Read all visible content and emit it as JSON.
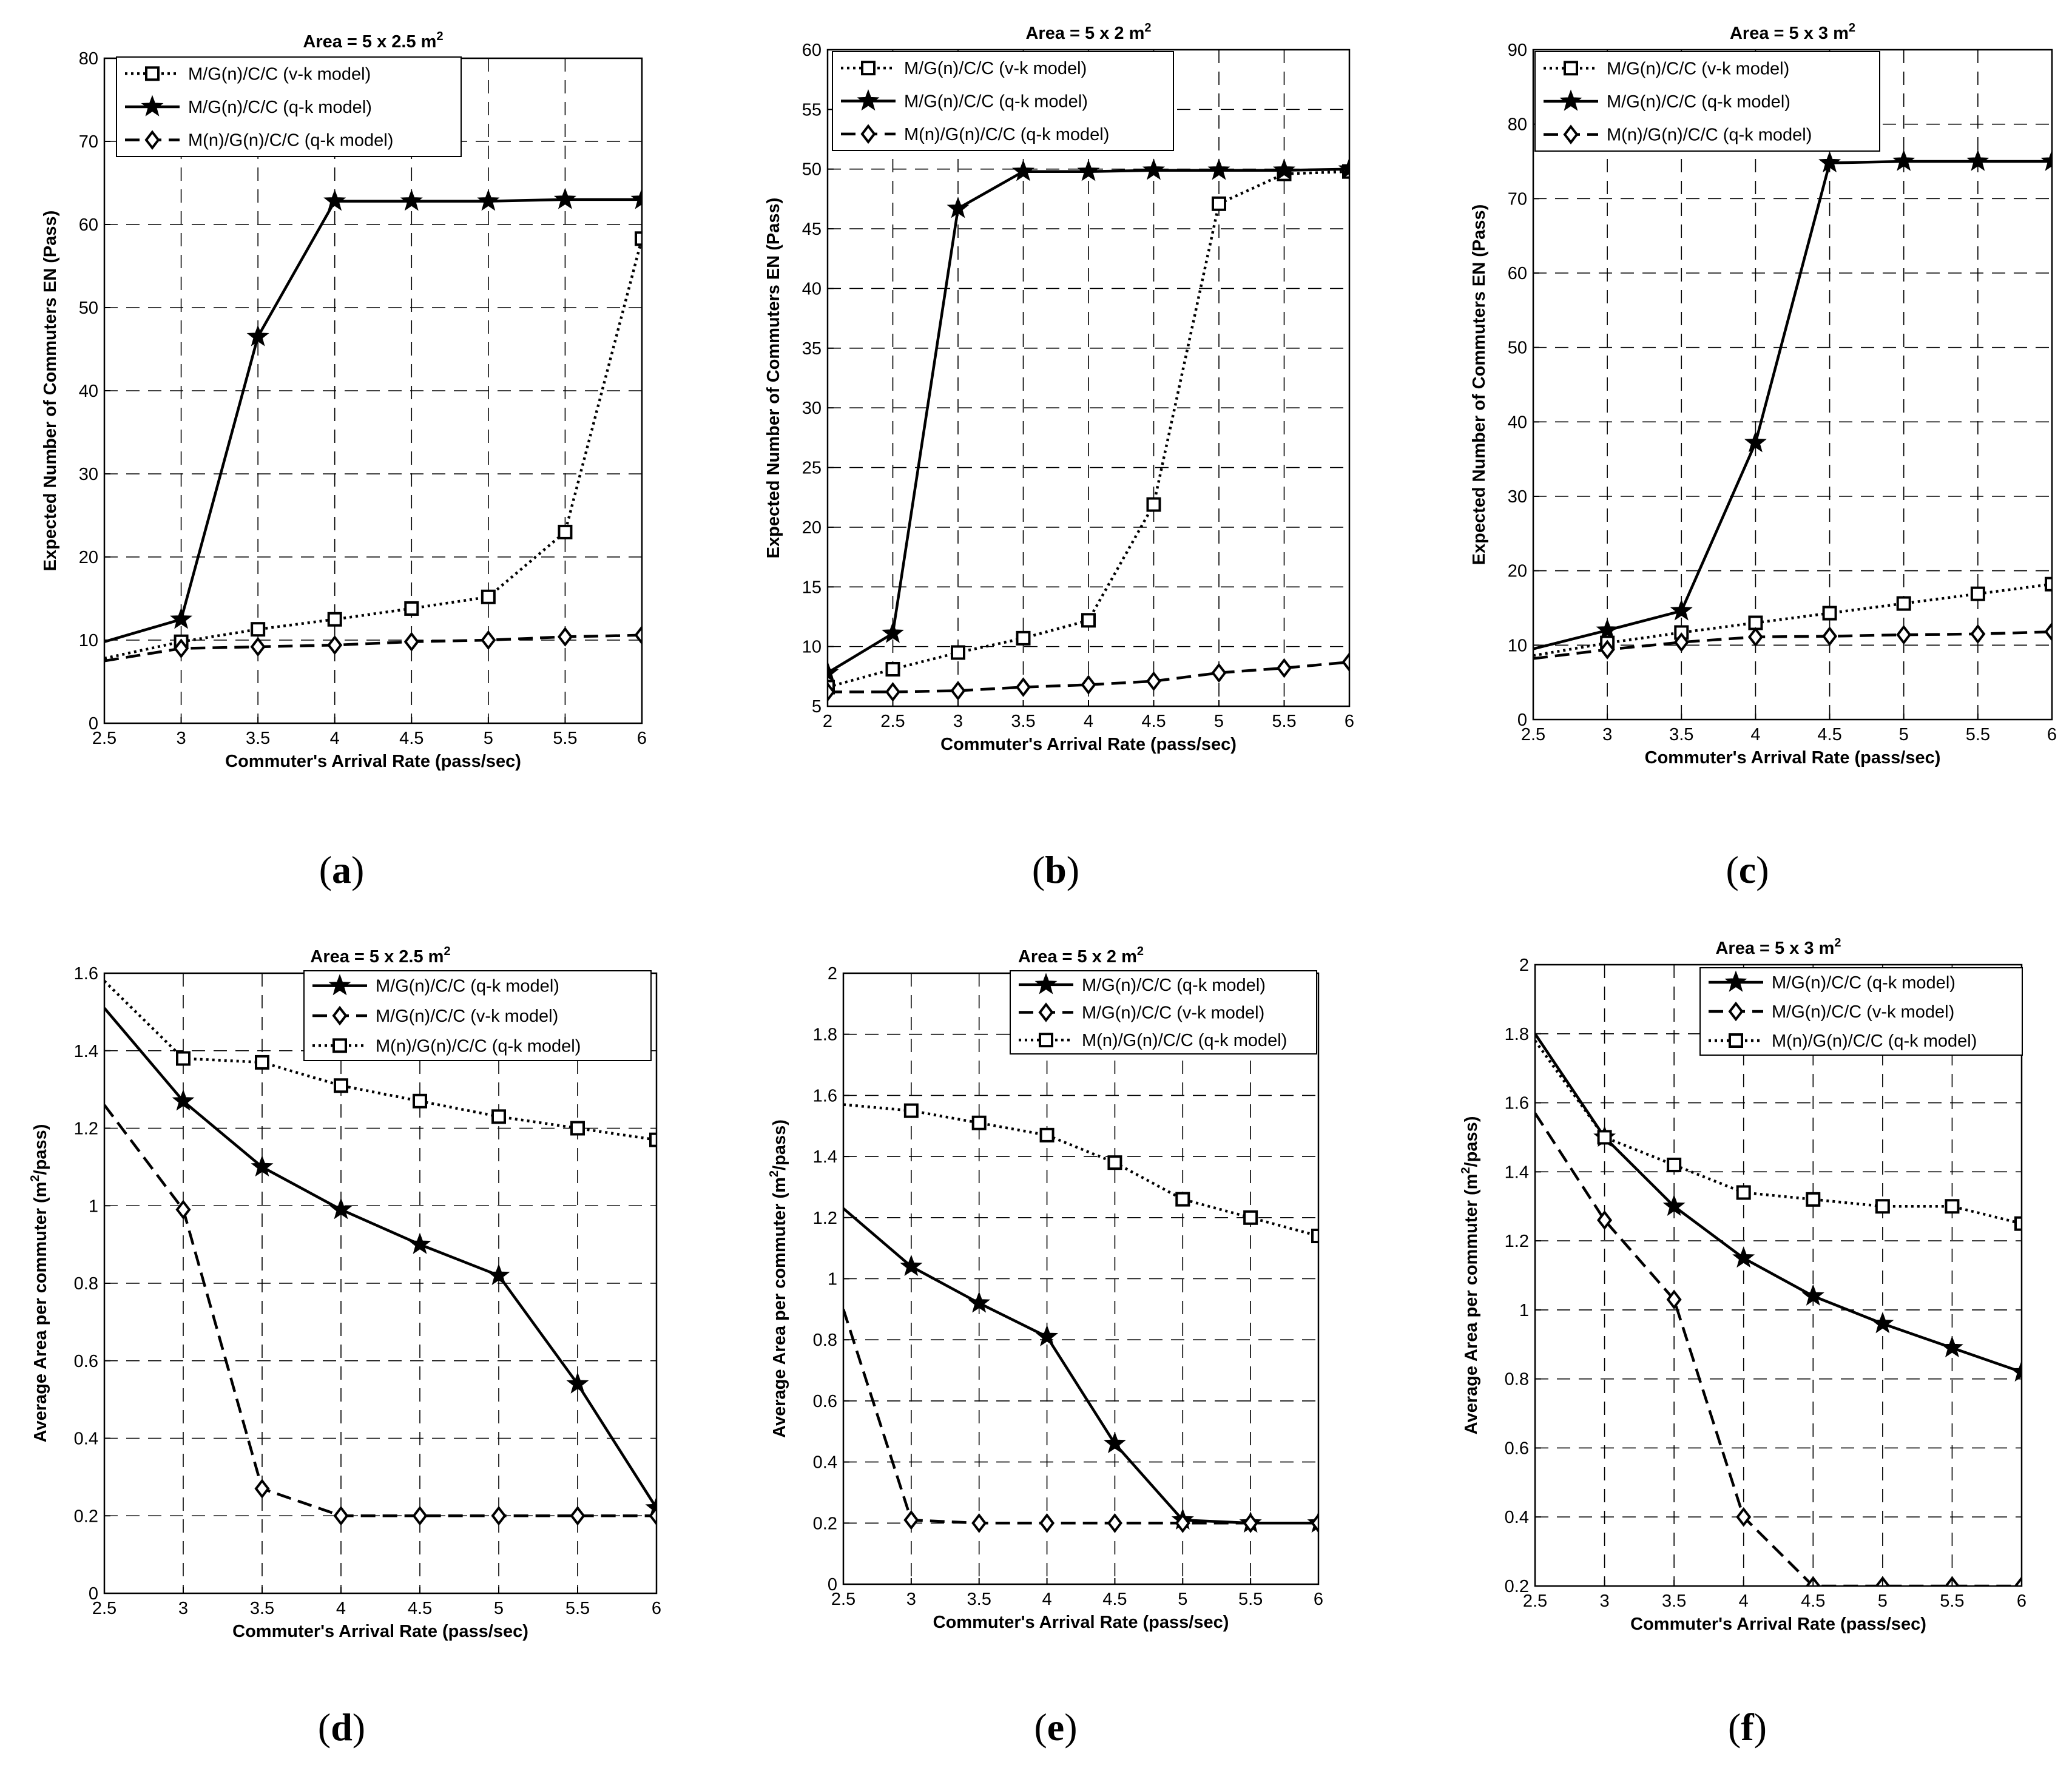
{
  "colors": {
    "background": "#ffffff",
    "ink": "#000000"
  },
  "chart_data": [
    {
      "id": "a",
      "type": "line",
      "sublabel": "(a)",
      "title": "Area = 5 x 2.5 m",
      "title_sup": "2",
      "xlabel": "Commuter's Arrival Rate (pass/sec)",
      "ylabel": "Expected Number of Commuters EN (Pass)",
      "xlim": [
        2.5,
        6
      ],
      "ylim": [
        0,
        80
      ],
      "xticks": [
        2.5,
        3,
        3.5,
        4,
        4.5,
        5,
        5.5,
        6
      ],
      "xtick_labels": [
        "2.5",
        "3",
        "3.5",
        "4",
        "4.5",
        "5",
        "5.5",
        "6"
      ],
      "yticks": [
        0,
        10,
        20,
        30,
        40,
        50,
        60,
        70,
        80
      ],
      "ytick_labels": [
        "0",
        "10",
        "20",
        "30",
        "40",
        "50",
        "60",
        "70",
        "80"
      ],
      "grid": true,
      "legend_position": "top-left",
      "series": [
        {
          "name": "M/G(n)/C/C (v-k model)",
          "line": "dotted",
          "marker": "square",
          "x": [
            2.5,
            3,
            3.5,
            4,
            4.5,
            5,
            5.5,
            6
          ],
          "y": [
            7.8,
            9.8,
            11.3,
            12.5,
            13.8,
            15.2,
            23,
            58.3
          ],
          "marked": [
            false,
            true,
            true,
            true,
            true,
            true,
            true,
            true
          ]
        },
        {
          "name": "M/G(n)/C/C (q-k model)",
          "line": "solid",
          "marker": "star",
          "x": [
            2.5,
            3,
            3.5,
            4,
            4.5,
            5,
            5.5,
            6
          ],
          "y": [
            9.8,
            12.5,
            46.5,
            62.8,
            62.8,
            62.8,
            63,
            63
          ],
          "marked": [
            false,
            true,
            true,
            true,
            true,
            true,
            true,
            true
          ]
        },
        {
          "name": "M(n)/G(n)/C/C (q-k model)",
          "line": "dashed",
          "marker": "diamond",
          "x": [
            2.5,
            3,
            3.5,
            4,
            4.5,
            5,
            5.5,
            6
          ],
          "y": [
            7.5,
            9,
            9.2,
            9.4,
            9.8,
            10,
            10.4,
            10.6
          ],
          "marked": [
            false,
            true,
            true,
            true,
            true,
            true,
            true,
            true
          ]
        }
      ]
    },
    {
      "id": "b",
      "type": "line",
      "sublabel": "(b)",
      "title": "Area = 5 x 2 m",
      "title_sup": "2",
      "xlabel": "Commuter's Arrival Rate (pass/sec)",
      "ylabel": "Expected Number of Commuters EN (Pass)",
      "xlim": [
        2,
        6
      ],
      "ylim": [
        5,
        60
      ],
      "xticks": [
        2,
        2.5,
        3,
        3.5,
        4,
        4.5,
        5,
        5.5,
        6
      ],
      "xtick_labels": [
        "2",
        "2.5",
        "3",
        "3.5",
        "4",
        "4.5",
        "5",
        "5.5",
        "6"
      ],
      "yticks": [
        5,
        10,
        15,
        20,
        25,
        30,
        35,
        40,
        45,
        50,
        55,
        60
      ],
      "ytick_labels": [
        "5",
        "10",
        "15",
        "20",
        "25",
        "30",
        "35",
        "40",
        "45",
        "50",
        "55",
        "60"
      ],
      "grid": true,
      "legend_position": "top-right",
      "series": [
        {
          "name": "M/G(n)/C/C (v-k model)",
          "line": "dotted",
          "marker": "square",
          "x": [
            2,
            2.5,
            3,
            3.5,
            4,
            4.5,
            5,
            5.5,
            6
          ],
          "y": [
            6.6,
            8.1,
            9.5,
            10.7,
            12.2,
            21.9,
            47.1,
            49.6,
            49.8
          ],
          "marked": [
            true,
            true,
            true,
            true,
            true,
            true,
            true,
            true,
            true
          ]
        },
        {
          "name": "M/G(n)/C/C (q-k model)",
          "line": "solid",
          "marker": "star",
          "x": [
            2,
            2.5,
            3,
            3.5,
            4,
            4.5,
            5,
            5.5,
            6
          ],
          "y": [
            7.8,
            11.1,
            46.7,
            49.8,
            49.8,
            49.9,
            49.9,
            49.9,
            50
          ],
          "marked": [
            true,
            true,
            true,
            true,
            true,
            true,
            true,
            true,
            true
          ]
        },
        {
          "name": "M(n)/G(n)/C/C (q-k model)",
          "line": "dashed",
          "marker": "diamond",
          "x": [
            2,
            2.5,
            3,
            3.5,
            4,
            4.5,
            5,
            5.5,
            6
          ],
          "y": [
            6.2,
            6.2,
            6.3,
            6.6,
            6.8,
            7.1,
            7.8,
            8.2,
            8.7
          ],
          "marked": [
            true,
            true,
            true,
            true,
            true,
            true,
            true,
            true,
            true
          ]
        }
      ]
    },
    {
      "id": "c",
      "type": "line",
      "sublabel": "(c)",
      "title": "Area = 5 x 3 m",
      "title_sup": "2",
      "xlabel": "Commuter's Arrival Rate (pass/sec)",
      "ylabel": "Expected Number of Commuters EN (Pass)",
      "xlim": [
        2.5,
        6
      ],
      "ylim": [
        0,
        90
      ],
      "xticks": [
        2.5,
        3,
        3.5,
        4,
        4.5,
        5,
        5.5,
        6
      ],
      "xtick_labels": [
        "2.5",
        "3",
        "3.5",
        "4",
        "4.5",
        "5",
        "5.5",
        "6"
      ],
      "yticks": [
        0,
        10,
        20,
        30,
        40,
        50,
        60,
        70,
        80,
        90
      ],
      "ytick_labels": [
        "0",
        "10",
        "20",
        "30",
        "40",
        "50",
        "60",
        "70",
        "80",
        "90"
      ],
      "grid": true,
      "legend_position": "top-right",
      "series": [
        {
          "name": "M/G(n)/C/C (v-k model)",
          "line": "dotted",
          "marker": "square",
          "x": [
            2.5,
            3,
            3.5,
            4,
            4.5,
            5,
            5.5,
            6
          ],
          "y": [
            8.6,
            10.3,
            11.7,
            13,
            14.3,
            15.6,
            16.9,
            18.2
          ],
          "marked": [
            false,
            true,
            true,
            true,
            true,
            true,
            true,
            true
          ]
        },
        {
          "name": "M/G(n)/C/C (q-k model)",
          "line": "solid",
          "marker": "star",
          "x": [
            2.5,
            3,
            3.5,
            4,
            4.5,
            5,
            5.5,
            6
          ],
          "y": [
            9.5,
            12,
            14.6,
            37.2,
            74.8,
            75,
            75,
            75
          ],
          "marked": [
            false,
            true,
            true,
            true,
            true,
            true,
            true,
            true
          ]
        },
        {
          "name": "M(n)/G(n)/C/C (q-k model)",
          "line": "dashed",
          "marker": "diamond",
          "x": [
            2.5,
            3,
            3.5,
            4,
            4.5,
            5,
            5.5,
            6
          ],
          "y": [
            8.2,
            9.4,
            10.4,
            11.1,
            11.2,
            11.4,
            11.5,
            11.8
          ],
          "marked": [
            false,
            true,
            true,
            true,
            true,
            true,
            true,
            true
          ]
        }
      ]
    },
    {
      "id": "d",
      "type": "line",
      "sublabel": "(d)",
      "title": "Area = 5 x 2.5 m",
      "title_sup": "2",
      "xlabel": "Commuter's Arrival Rate (pass/sec)",
      "ylabel": "Average Area per commuter (m",
      "ylabel_sup": "2",
      "ylabel_tail": "/pass)",
      "xlim": [
        2.5,
        6
      ],
      "ylim": [
        0,
        1.6
      ],
      "xticks": [
        2.5,
        3,
        3.5,
        4,
        4.5,
        5,
        5.5,
        6
      ],
      "xtick_labels": [
        "2.5",
        "3",
        "3.5",
        "4",
        "4.5",
        "5",
        "5.5",
        "6"
      ],
      "yticks": [
        0,
        0.2,
        0.4,
        0.6,
        0.8,
        1,
        1.2,
        1.4,
        1.6
      ],
      "ytick_labels": [
        "0",
        "0.2",
        "0.4",
        "0.6",
        "0.8",
        "1",
        "1.2",
        "1.4",
        "1.6"
      ],
      "grid": true,
      "legend_position": "top-right",
      "series": [
        {
          "name": "M/G(n)/C/C (q-k model)",
          "line": "solid",
          "marker": "star",
          "x": [
            2.5,
            3,
            3.5,
            4,
            4.5,
            5,
            5.5,
            6
          ],
          "y": [
            1.51,
            1.27,
            1.1,
            0.99,
            0.9,
            0.82,
            0.54,
            0.22
          ],
          "marked": [
            false,
            true,
            true,
            true,
            true,
            true,
            true,
            true
          ]
        },
        {
          "name": "M/G(n)/C/C (v-k model)",
          "line": "dashed",
          "marker": "diamond",
          "x": [
            2.5,
            3,
            3.5,
            4,
            4.5,
            5,
            5.5,
            6
          ],
          "y": [
            1.26,
            0.99,
            0.27,
            0.2,
            0.2,
            0.2,
            0.2,
            0.2
          ],
          "marked": [
            false,
            true,
            true,
            true,
            true,
            true,
            true,
            true
          ]
        },
        {
          "name": "M(n)/G(n)/C/C (q-k model)",
          "line": "dotted",
          "marker": "square",
          "x": [
            2.5,
            3,
            3.5,
            4,
            4.5,
            5,
            5.5,
            6
          ],
          "y": [
            1.58,
            1.38,
            1.37,
            1.31,
            1.27,
            1.23,
            1.2,
            1.17
          ],
          "marked": [
            false,
            true,
            true,
            true,
            true,
            true,
            true,
            true
          ]
        }
      ]
    },
    {
      "id": "e",
      "type": "line",
      "sublabel": "(e)",
      "title": "Area = 5 x 2 m",
      "title_sup": "2",
      "xlabel": "Commuter's Arrival Rate (pass/sec)",
      "ylabel": "Average Area per commuter (m",
      "ylabel_sup": "2",
      "ylabel_tail": "/pass)",
      "xlim": [
        2.5,
        6
      ],
      "ylim": [
        0,
        2
      ],
      "xticks": [
        2.5,
        3,
        3.5,
        4,
        4.5,
        5,
        5.5,
        6
      ],
      "xtick_labels": [
        "2.5",
        "3",
        "3.5",
        "4",
        "4.5",
        "5",
        "5.5",
        "6"
      ],
      "yticks": [
        0,
        0.2,
        0.4,
        0.6,
        0.8,
        1,
        1.2,
        1.4,
        1.6,
        1.8,
        2
      ],
      "ytick_labels": [
        "0",
        "0.2",
        "0.4",
        "0.6",
        "0.8",
        "1",
        "1.2",
        "1.4",
        "1.6",
        "1.8",
        "2"
      ],
      "grid": true,
      "legend_position": "top-right",
      "series": [
        {
          "name": "M/G(n)/C/C (q-k model)",
          "line": "solid",
          "marker": "star",
          "x": [
            2.5,
            3,
            3.5,
            4,
            4.5,
            5,
            5.5,
            6
          ],
          "y": [
            1.23,
            1.04,
            0.92,
            0.81,
            0.46,
            0.21,
            0.2,
            0.2
          ],
          "marked": [
            false,
            true,
            true,
            true,
            true,
            true,
            true,
            true
          ]
        },
        {
          "name": "M/G(n)/C/C (v-k model)",
          "line": "dashed",
          "marker": "diamond",
          "x": [
            2.5,
            3,
            3.5,
            4,
            4.5,
            5,
            5.5,
            6
          ],
          "y": [
            0.9,
            0.21,
            0.2,
            0.2,
            0.2,
            0.2,
            0.2,
            0.2
          ],
          "marked": [
            false,
            true,
            true,
            true,
            true,
            true,
            true,
            true
          ]
        },
        {
          "name": "M(n)/G(n)/C/C (q-k model)",
          "line": "dotted",
          "marker": "square",
          "x": [
            2.5,
            3,
            3.5,
            4,
            4.5,
            5,
            5.5,
            6
          ],
          "y": [
            1.57,
            1.55,
            1.51,
            1.47,
            1.38,
            1.26,
            1.2,
            1.14
          ],
          "marked": [
            false,
            true,
            true,
            true,
            true,
            true,
            true,
            true
          ]
        }
      ]
    },
    {
      "id": "f",
      "type": "line",
      "sublabel": "(f)",
      "title": "Area = 5 x 3 m",
      "title_sup": "2",
      "xlabel": "Commuter's Arrival Rate (pass/sec)",
      "ylabel": "Average Area per commuter (m",
      "ylabel_sup": "2",
      "ylabel_tail": "/pass)",
      "xlim": [
        2.5,
        6
      ],
      "ylim": [
        0.2,
        2
      ],
      "xticks": [
        2.5,
        3,
        3.5,
        4,
        4.5,
        5,
        5.5,
        6
      ],
      "xtick_labels": [
        "2.5",
        "3",
        "3.5",
        "4",
        "4.5",
        "5",
        "5.5",
        "6"
      ],
      "yticks": [
        0.2,
        0.4,
        0.6,
        0.8,
        1,
        1.2,
        1.4,
        1.6,
        1.8,
        2
      ],
      "ytick_labels": [
        "0.2",
        "0.4",
        "0.6",
        "0.8",
        "1",
        "1.2",
        "1.4",
        "1.6",
        "1.8",
        "2"
      ],
      "grid": true,
      "legend_position": "top-right",
      "series": [
        {
          "name": "M/G(n)/C/C (q-k model)",
          "line": "solid",
          "marker": "star",
          "x": [
            2.5,
            3,
            3.5,
            4,
            4.5,
            5,
            5.5,
            6
          ],
          "y": [
            1.8,
            1.5,
            1.3,
            1.15,
            1.04,
            0.96,
            0.89,
            0.82
          ],
          "marked": [
            false,
            true,
            true,
            true,
            true,
            true,
            true,
            true
          ]
        },
        {
          "name": "M/G(n)/C/C (v-k model)",
          "line": "dashed",
          "marker": "diamond",
          "x": [
            2.5,
            3,
            3.5,
            4,
            4.5,
            5,
            5.5,
            6
          ],
          "y": [
            1.57,
            1.26,
            1.03,
            0.4,
            0.2,
            0.2,
            0.2,
            0.2
          ],
          "marked": [
            false,
            true,
            true,
            true,
            true,
            true,
            true,
            true
          ]
        },
        {
          "name": "M(n)/G(n)/C/C (q-k model)",
          "line": "dotted",
          "marker": "square",
          "x": [
            2.5,
            3,
            3.5,
            4,
            4.5,
            5,
            5.5,
            6
          ],
          "y": [
            1.78,
            1.5,
            1.42,
            1.34,
            1.32,
            1.3,
            1.3,
            1.25
          ],
          "marked": [
            false,
            true,
            true,
            true,
            true,
            true,
            true,
            true
          ]
        }
      ]
    }
  ]
}
